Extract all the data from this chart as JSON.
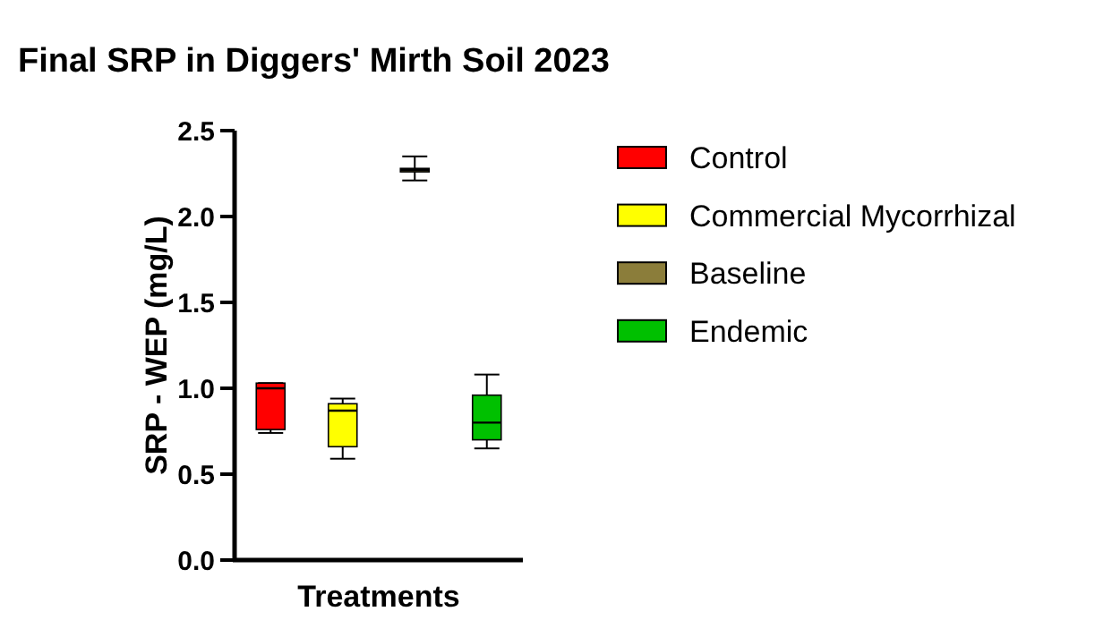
{
  "chart_data": {
    "type": "box",
    "title": "Final SRP in Diggers' Mirth Soil 2023",
    "xlabel": "Treatments",
    "ylabel": "SRP - WEP (mg/L)",
    "categories": [
      null,
      null,
      null,
      null
    ],
    "ylim": [
      0,
      2.5
    ],
    "yticks": [
      {
        "value": 0,
        "label": "0.0"
      },
      0.5,
      {
        "value": 1,
        "label": "1.0"
      },
      1.5,
      {
        "value": 2,
        "label": "2.0"
      },
      2.5
    ],
    "legend": "right",
    "grid": false,
    "series": [
      {
        "name": "Control",
        "color": "#ff0000",
        "boxes": [
          {
            "low": 0.74,
            "q1": 0.76,
            "median": 1.0,
            "q3": 1.03,
            "high": 1.03
          },
          null,
          null,
          null
        ]
      },
      {
        "name": "Commercial Mycorrhizal",
        "color": "#ffff00",
        "boxes": [
          null,
          {
            "low": 0.59,
            "q1": 0.66,
            "median": 0.87,
            "q3": 0.91,
            "high": 0.94
          },
          null,
          null
        ]
      },
      {
        "name": "Baseline",
        "color": "#8b7d3a",
        "boxes": [
          null,
          null,
          {
            "low": 2.21,
            "q1": 2.26,
            "median": 2.27,
            "q3": 2.28,
            "high": 2.35
          },
          null
        ]
      },
      {
        "name": "Endemic",
        "color": "#00c000",
        "boxes": [
          null,
          null,
          null,
          {
            "low": 0.65,
            "q1": 0.7,
            "median": 0.8,
            "q3": 0.96,
            "high": 1.08
          }
        ]
      }
    ]
  }
}
